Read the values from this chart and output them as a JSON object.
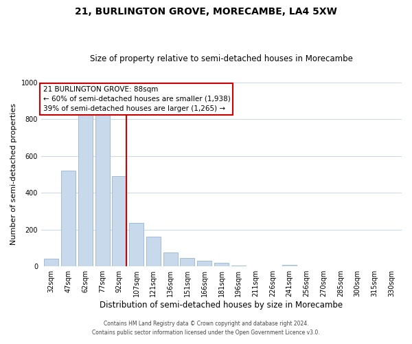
{
  "title": "21, BURLINGTON GROVE, MORECAMBE, LA4 5XW",
  "subtitle": "Size of property relative to semi-detached houses in Morecambe",
  "xlabel": "Distribution of semi-detached houses by size in Morecambe",
  "ylabel": "Number of semi-detached properties",
  "categories": [
    "32sqm",
    "47sqm",
    "62sqm",
    "77sqm",
    "92sqm",
    "107sqm",
    "121sqm",
    "136sqm",
    "151sqm",
    "166sqm",
    "181sqm",
    "196sqm",
    "211sqm",
    "226sqm",
    "241sqm",
    "256sqm",
    "270sqm",
    "285sqm",
    "300sqm",
    "315sqm",
    "330sqm"
  ],
  "values": [
    43,
    520,
    828,
    822,
    490,
    235,
    163,
    75,
    47,
    32,
    18,
    3,
    0,
    0,
    8,
    0,
    0,
    0,
    0,
    0,
    0
  ],
  "bar_color": "#c9d9ec",
  "bar_edge_color": "#a0bcd8",
  "marker_index": 4,
  "marker_color": "#cc0000",
  "annotation_title": "21 BURLINGTON GROVE: 88sqm",
  "annotation_line1": "← 60% of semi-detached houses are smaller (1,938)",
  "annotation_line2": "39% of semi-detached houses are larger (1,265) →",
  "annotation_box_color": "#ffffff",
  "annotation_box_edge": "#cc0000",
  "ylim": [
    0,
    1000
  ],
  "footer1": "Contains HM Land Registry data © Crown copyright and database right 2024.",
  "footer2": "Contains public sector information licensed under the Open Government Licence v3.0."
}
